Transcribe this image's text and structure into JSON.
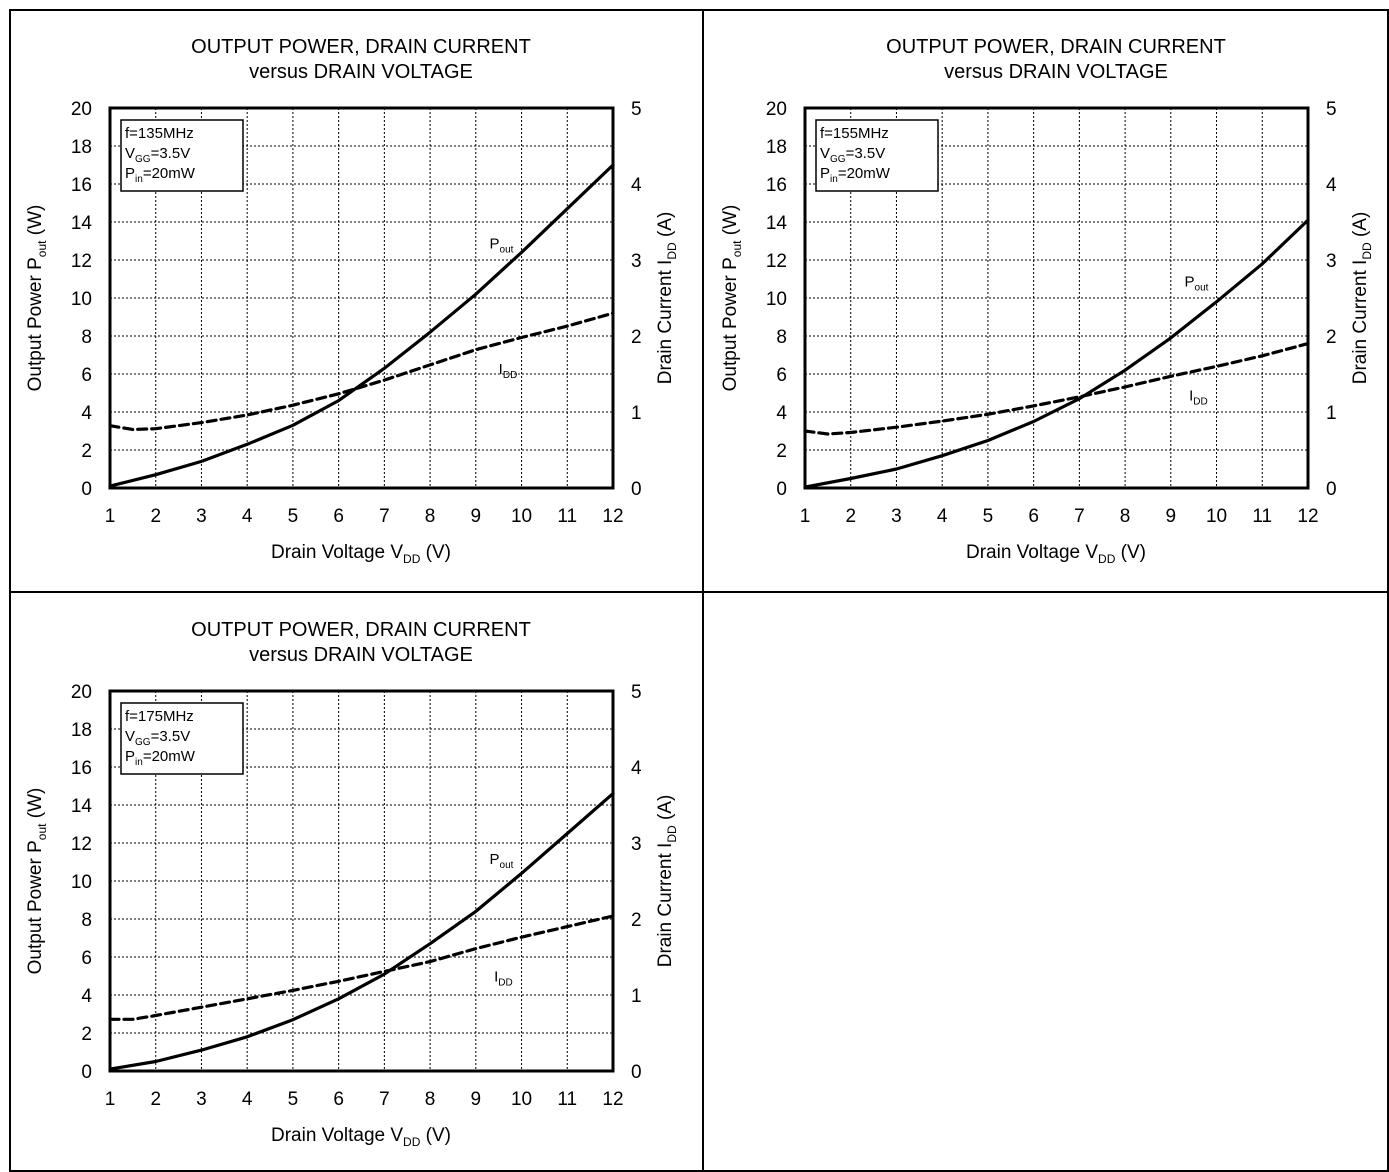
{
  "chart_data": [
    {
      "type": "line",
      "title": "OUTPUT  POWER, DRAIN CURRENT",
      "subtitle": "versus  DRAIN VOLTAGE",
      "xlabel": "Drain Voltage V",
      "xlabel_sub": "DD",
      "xlabel_unit": " (V)",
      "ylabel": "Output  Power P",
      "ylabel_sub": "out",
      "ylabel_unit": " (W)",
      "y2label": "Drain Current I",
      "y2label_sub": "DD",
      "y2label_unit": " (A)",
      "xlim": [
        1,
        12
      ],
      "ylim": [
        0,
        20
      ],
      "y2lim": [
        0,
        5
      ],
      "xticks": [
        "1",
        "2",
        "3",
        "4",
        "5",
        "6",
        "7",
        "8",
        "9",
        "10",
        "11",
        "12"
      ],
      "yticks": [
        "0",
        "2",
        "4",
        "6",
        "8",
        "10",
        "12",
        "14",
        "16",
        "18",
        "20"
      ],
      "y2ticks": [
        "0",
        "1",
        "2",
        "3",
        "4",
        "5"
      ],
      "grid": true,
      "conditions": [
        {
          "main": "f=135MHz",
          "sub": "",
          "rest": ""
        },
        {
          "main": "V",
          "sub": "GG",
          "rest": "=3.5V"
        },
        {
          "main": "P",
          "sub": "in",
          "rest": "=20mW"
        }
      ],
      "series": [
        {
          "name": "P",
          "name_sub": "out",
          "axis": "left",
          "style": "solid",
          "x": [
            1,
            2,
            3,
            4,
            5,
            6,
            7,
            8,
            9,
            10,
            11,
            12
          ],
          "values": [
            0.1,
            0.7,
            1.4,
            2.3,
            3.3,
            4.6,
            6.3,
            8.2,
            10.2,
            12.4,
            14.7,
            17.0
          ],
          "label_at": [
            9.3,
            12.6
          ]
        },
        {
          "name": "I",
          "name_sub": "DD",
          "axis": "right",
          "style": "dashed",
          "x": [
            1,
            1.5,
            2,
            3,
            4,
            5,
            6,
            7,
            8,
            9,
            10,
            11,
            12
          ],
          "values": [
            0.82,
            0.77,
            0.78,
            0.86,
            0.96,
            1.09,
            1.24,
            1.42,
            1.62,
            1.82,
            1.98,
            2.13,
            2.3
          ],
          "label_at": [
            9.5,
            1.5
          ]
        }
      ]
    },
    {
      "type": "line",
      "title": "OUTPUT  POWER, DRAIN CURRENT",
      "subtitle": "versus  DRAIN VOLTAGE",
      "xlabel": "Drain Voltage V",
      "xlabel_sub": "DD",
      "xlabel_unit": " (V)",
      "ylabel": "Output  Power P",
      "ylabel_sub": "out",
      "ylabel_unit": " (W)",
      "y2label": "Drain Current I",
      "y2label_sub": "DD",
      "y2label_unit": " (A)",
      "xlim": [
        1,
        12
      ],
      "ylim": [
        0,
        20
      ],
      "y2lim": [
        0,
        5
      ],
      "xticks": [
        "1",
        "2",
        "3",
        "4",
        "5",
        "6",
        "7",
        "8",
        "9",
        "10",
        "11",
        "12"
      ],
      "yticks": [
        "0",
        "2",
        "4",
        "6",
        "8",
        "10",
        "12",
        "14",
        "16",
        "18",
        "20"
      ],
      "y2ticks": [
        "0",
        "1",
        "2",
        "3",
        "4",
        "5"
      ],
      "grid": true,
      "conditions": [
        {
          "main": "f=155MHz",
          "sub": "",
          "rest": ""
        },
        {
          "main": "V",
          "sub": "GG",
          "rest": "=3.5V"
        },
        {
          "main": "P",
          "sub": "in",
          "rest": "=20mW"
        }
      ],
      "series": [
        {
          "name": "P",
          "name_sub": "out",
          "axis": "left",
          "style": "solid",
          "x": [
            1,
            2,
            3,
            4,
            5,
            6,
            7,
            8,
            9,
            10,
            11,
            12
          ],
          "values": [
            0.05,
            0.5,
            1.0,
            1.7,
            2.5,
            3.5,
            4.7,
            6.2,
            7.9,
            9.8,
            11.8,
            14.1
          ],
          "label_at": [
            9.3,
            10.6
          ]
        },
        {
          "name": "I",
          "name_sub": "DD",
          "axis": "right",
          "style": "dashed",
          "x": [
            1,
            1.5,
            2,
            3,
            4,
            5,
            6,
            7,
            8,
            9,
            10,
            11,
            12
          ],
          "values": [
            0.75,
            0.71,
            0.73,
            0.8,
            0.88,
            0.97,
            1.08,
            1.2,
            1.33,
            1.47,
            1.6,
            1.74,
            1.9
          ],
          "label_at": [
            9.4,
            1.15
          ]
        }
      ]
    },
    {
      "type": "line",
      "title": "OUTPUT  POWER, DRAIN CURRENT",
      "subtitle": "versus  DRAIN VOLTAGE",
      "xlabel": "Drain Voltage V",
      "xlabel_sub": "DD",
      "xlabel_unit": " (V)",
      "ylabel": "Output  Power P",
      "ylabel_sub": "out",
      "ylabel_unit": " (W)",
      "y2label": "Drain Current I",
      "y2label_sub": "DD",
      "y2label_unit": " (A)",
      "xlim": [
        1,
        12
      ],
      "ylim": [
        0,
        20
      ],
      "y2lim": [
        0,
        5
      ],
      "xticks": [
        "1",
        "2",
        "3",
        "4",
        "5",
        "6",
        "7",
        "8",
        "9",
        "10",
        "11",
        "12"
      ],
      "yticks": [
        "0",
        "2",
        "4",
        "6",
        "8",
        "10",
        "12",
        "14",
        "16",
        "18",
        "20"
      ],
      "y2ticks": [
        "0",
        "1",
        "2",
        "3",
        "4",
        "5"
      ],
      "grid": true,
      "conditions": [
        {
          "main": "f=175MHz",
          "sub": "",
          "rest": ""
        },
        {
          "main": "V",
          "sub": "GG",
          "rest": "=3.5V"
        },
        {
          "main": "P",
          "sub": "in",
          "rest": "=20mW"
        }
      ],
      "series": [
        {
          "name": "P",
          "name_sub": "out",
          "axis": "left",
          "style": "solid",
          "x": [
            1,
            2,
            3,
            4,
            5,
            6,
            7,
            8,
            9,
            10,
            11,
            12
          ],
          "values": [
            0.1,
            0.5,
            1.1,
            1.8,
            2.7,
            3.8,
            5.1,
            6.7,
            8.4,
            10.4,
            12.5,
            14.6
          ],
          "label_at": [
            9.3,
            10.9
          ]
        },
        {
          "name": "I",
          "name_sub": "DD",
          "axis": "right",
          "style": "dashed",
          "x": [
            1,
            1.5,
            2,
            3,
            4,
            5,
            6,
            7,
            8,
            9,
            10,
            11,
            12
          ],
          "values": [
            0.68,
            0.68,
            0.73,
            0.84,
            0.95,
            1.06,
            1.18,
            1.31,
            1.44,
            1.61,
            1.76,
            1.9,
            2.04
          ],
          "label_at": [
            9.4,
            1.18
          ]
        }
      ]
    }
  ]
}
